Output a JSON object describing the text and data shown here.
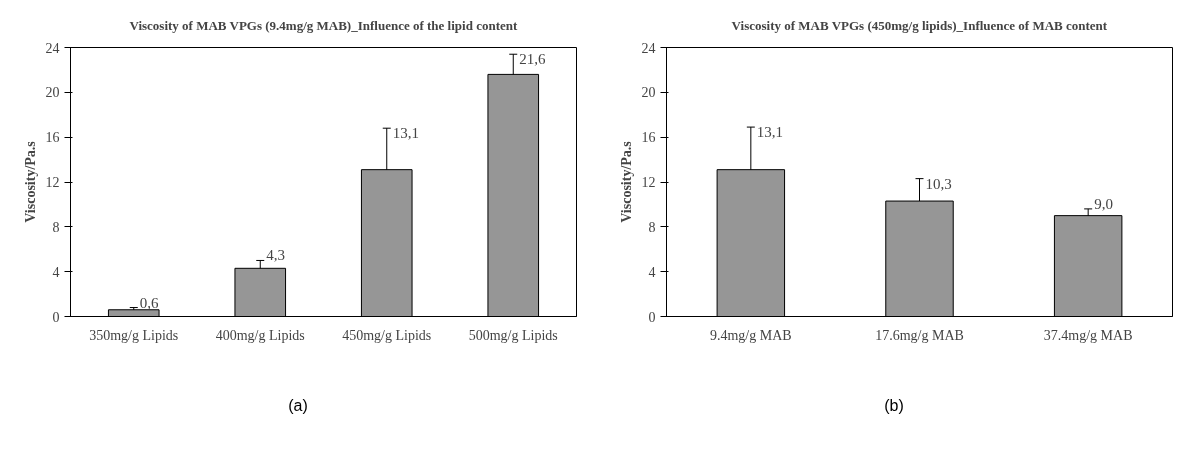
{
  "chart_data": [
    {
      "type": "bar",
      "title": "Viscosity of MAB VPGs (9.4mg/g MAB)_Influence of the lipid content",
      "ylabel": "Viscosity/Pa.s",
      "categories": [
        "350mg/g Lipids",
        "400mg/g Lipids",
        "450mg/g Lipids",
        "500mg/g Lipids"
      ],
      "values": [
        0.6,
        4.3,
        13.1,
        21.6
      ],
      "color": "#969696",
      "errors": [
        0.2,
        0.7,
        3.7,
        1.8
      ],
      "value_labels": [
        "0,6",
        "4,3",
        "13,1",
        "21,6"
      ],
      "ylim": [
        0,
        24
      ],
      "yticks": [
        0,
        4,
        8,
        12,
        16,
        20,
        24
      ],
      "grid": false,
      "annotations": [
        "(a)"
      ]
    },
    {
      "type": "bar",
      "title": "Viscosity of MAB VPGs (450mg/g lipids)_Influence of MAB content",
      "ylabel": "Viscosity/Pa.s",
      "categories": [
        "9.4mg/g MAB",
        "17.6mg/g MAB",
        "37.4mg/g MAB"
      ],
      "values": [
        13.1,
        10.3,
        9.0
      ],
      "color": "#969696",
      "errors": [
        3.8,
        2.0,
        0.6
      ],
      "value_labels": [
        "13,1",
        "10,3",
        "9,0"
      ],
      "ylim": [
        0,
        24
      ],
      "yticks": [
        0,
        4,
        8,
        12,
        16,
        20,
        24
      ],
      "grid": false,
      "annotations": [
        "(b)"
      ]
    }
  ]
}
